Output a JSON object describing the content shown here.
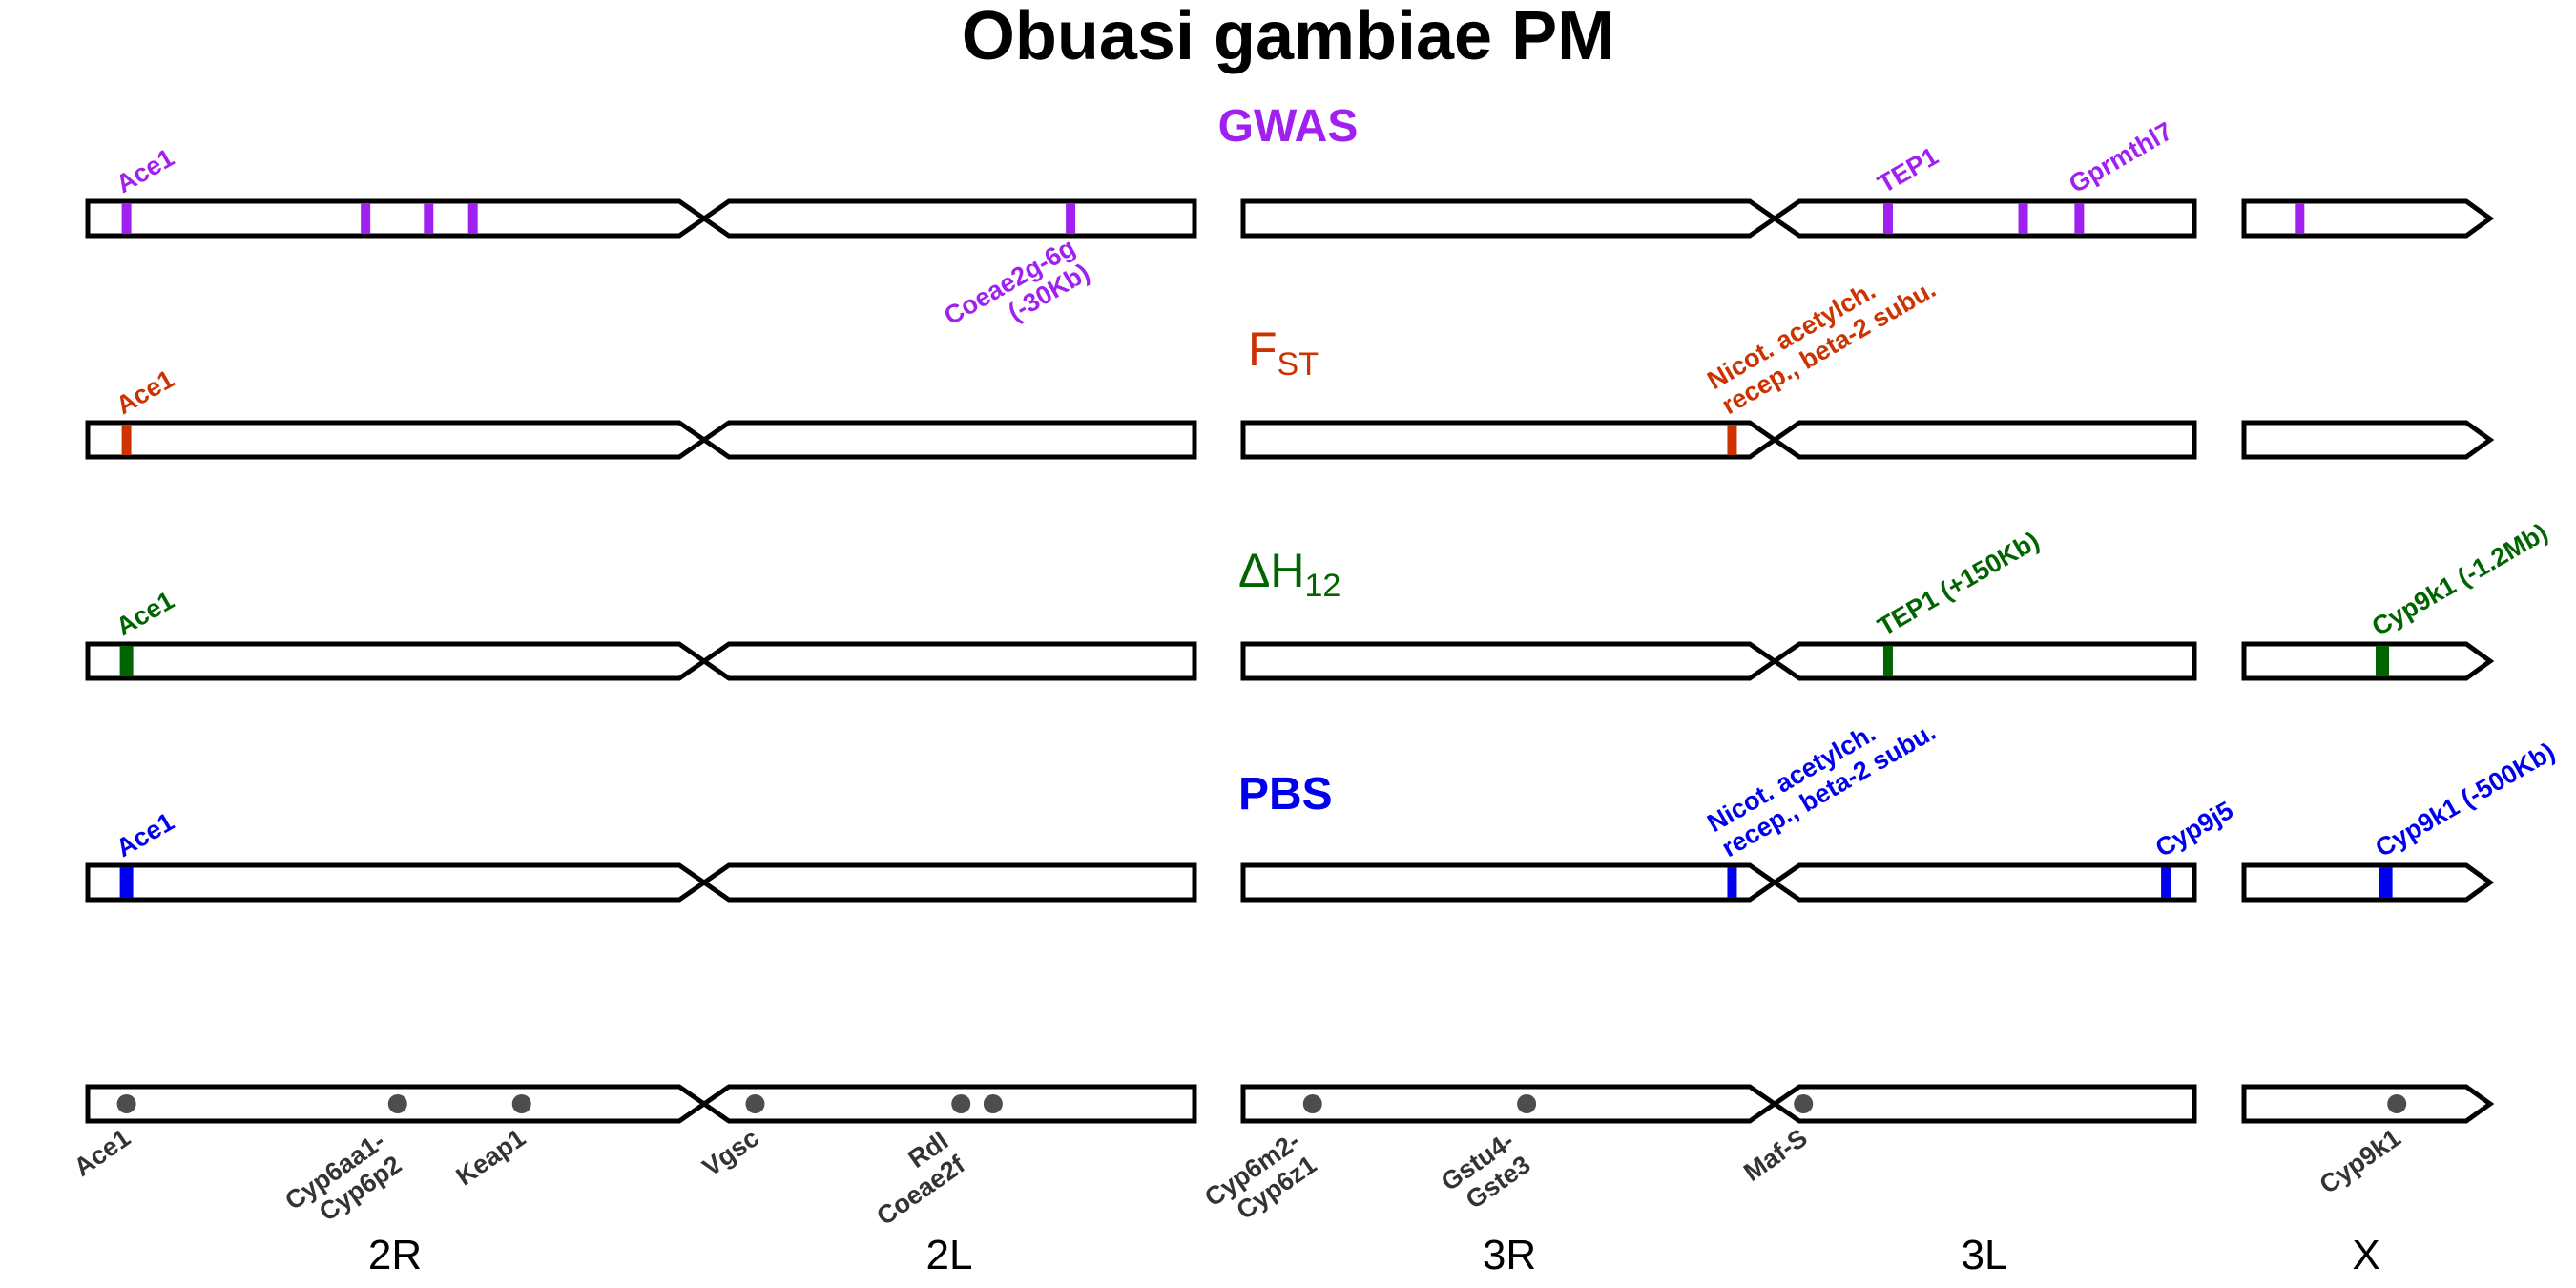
{
  "title": "Obuasi gambiae PM",
  "chromosome_arms": [
    "2R",
    "2L",
    "3R",
    "3L",
    "X"
  ],
  "colors": {
    "gwas": "#a020f0",
    "fst": "#cc3300",
    "h12": "#006400",
    "pbs": "#0000ee",
    "ref": "#4d4d4d",
    "outline": "#000000"
  },
  "tracks": [
    {
      "id": "gwas",
      "label": "GWAS",
      "color": "#a020f0",
      "peaks": [
        {
          "chrom": "2",
          "pos": 3.5,
          "label_lines": [
            "Ace1"
          ],
          "label_side": "above"
        },
        {
          "chrom": "2",
          "pos": 25.1
        },
        {
          "chrom": "2",
          "pos": 30.8
        },
        {
          "chrom": "2",
          "pos": 34.8
        },
        {
          "chrom": "2",
          "pos": 88.8,
          "label_lines": [
            "Coeae2g-6g",
            "(-30Kb)"
          ],
          "label_side": "below"
        },
        {
          "chrom": "3",
          "pos": 67.8,
          "label_lines": [
            "TEP1"
          ],
          "label_side": "above"
        },
        {
          "chrom": "3",
          "pos": 82.0
        },
        {
          "chrom": "3",
          "pos": 87.9,
          "label_lines": [
            "Gprmthl7"
          ],
          "label_side": "above"
        },
        {
          "chrom": "X",
          "pos": 22.6
        }
      ]
    },
    {
      "id": "fst",
      "label": "F",
      "label_sub": "ST",
      "color": "#cc3300",
      "peaks": [
        {
          "chrom": "2",
          "pos": 3.5,
          "label_lines": [
            "Ace1"
          ],
          "label_side": "above"
        },
        {
          "chrom": "3",
          "pos": 51.4,
          "label_lines": [
            "Nicot. acetylch.",
            "recep., beta-2 subu."
          ],
          "label_side": "above"
        }
      ]
    },
    {
      "id": "h12",
      "label": "ΔH",
      "label_sub": "12",
      "color": "#006400",
      "peaks": [
        {
          "chrom": "2",
          "pos": 3.5,
          "label_lines": [
            "Ace1"
          ],
          "label_side": "above"
        },
        {
          "chrom": "3",
          "pos": 67.8,
          "label_lines": [
            "TEP1 (+150Kb)"
          ],
          "label_side": "above"
        },
        {
          "chrom": "X",
          "pos": 56.2,
          "label_lines": [
            "Cyp9k1 (-1.2Mb)"
          ],
          "label_side": "above"
        }
      ]
    },
    {
      "id": "pbs",
      "label": "PBS",
      "color": "#0000ee",
      "peaks": [
        {
          "chrom": "2",
          "pos": 3.5,
          "label_lines": [
            "Ace1"
          ],
          "label_side": "above"
        },
        {
          "chrom": "3",
          "pos": 51.4,
          "label_lines": [
            "Nicot. acetylch.",
            "recep., beta-2 subu."
          ],
          "label_side": "above"
        },
        {
          "chrom": "3",
          "pos": 97.0,
          "label_lines": [
            "Cyp9j5"
          ],
          "label_side": "above"
        },
        {
          "chrom": "X",
          "pos": 57.6,
          "label_lines": [
            "Cyp9k1 (-500Kb)"
          ],
          "label_side": "above"
        }
      ]
    }
  ],
  "reference_genes": [
    {
      "chrom": "2",
      "pos": 3.5,
      "label_lines": [
        "Ace1"
      ]
    },
    {
      "chrom": "2",
      "pos": 28.0,
      "label_lines": [
        "Cyp6aa1-",
        "Cyp6p2"
      ]
    },
    {
      "chrom": "2",
      "pos": 39.2,
      "label_lines": [
        "Keap1"
      ]
    },
    {
      "chrom": "2",
      "pos": 60.3,
      "label_lines": [
        "Vgsc"
      ]
    },
    {
      "chrom": "2",
      "pos": 78.9,
      "label_lines": [
        "Rdl",
        "Coeae2f"
      ]
    },
    {
      "chrom": "2",
      "pos": 81.8,
      "label_lines": []
    },
    {
      "chrom": "3",
      "pos": 7.3,
      "label_lines": [
        "Cyp6m2-",
        "Cyp6z1"
      ]
    },
    {
      "chrom": "3",
      "pos": 29.8,
      "label_lines": [
        "Gstu4-",
        "Gste3"
      ]
    },
    {
      "chrom": "3",
      "pos": 58.9,
      "label_lines": [
        "Maf-S"
      ]
    },
    {
      "chrom": "X",
      "pos": 62.1,
      "label_lines": [
        "Cyp9k1"
      ]
    }
  ]
}
